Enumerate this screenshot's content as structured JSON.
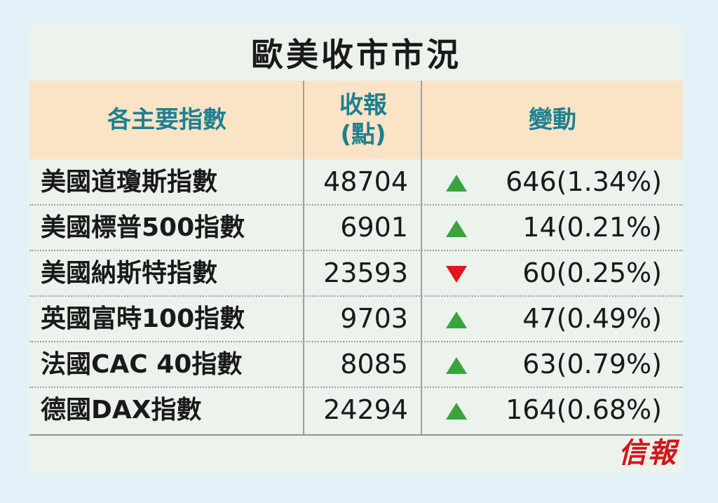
{
  "title": "歐美收市市況",
  "headers": {
    "name": "各主要指數",
    "close_line1": "收報",
    "close_line2": "(點)",
    "change": "變動"
  },
  "colors": {
    "up": "#3aa33c",
    "down": "#e3141b",
    "header_text": "#1d7f90",
    "logo": "#d3141b"
  },
  "rows": [
    {
      "name": "美國道瓊斯指數",
      "close": "48704",
      "direction": "up",
      "change": "646(1.34%)"
    },
    {
      "name": "美國標普500指數",
      "close": "6901",
      "direction": "up",
      "change": "14(0.21%)"
    },
    {
      "name": "美國納斯特指數",
      "close": "23593",
      "direction": "down",
      "change": "60(0.25%)"
    },
    {
      "name": "英國富時100指數",
      "close": "9703",
      "direction": "up",
      "change": "47(0.49%)"
    },
    {
      "name": "法國CAC 40指數",
      "close": "8085",
      "direction": "up",
      "change": "63(0.79%)"
    },
    {
      "name": "德國DAX指數",
      "close": "24294",
      "direction": "up",
      "change": "164(0.68%)"
    }
  ],
  "logo": "信報"
}
